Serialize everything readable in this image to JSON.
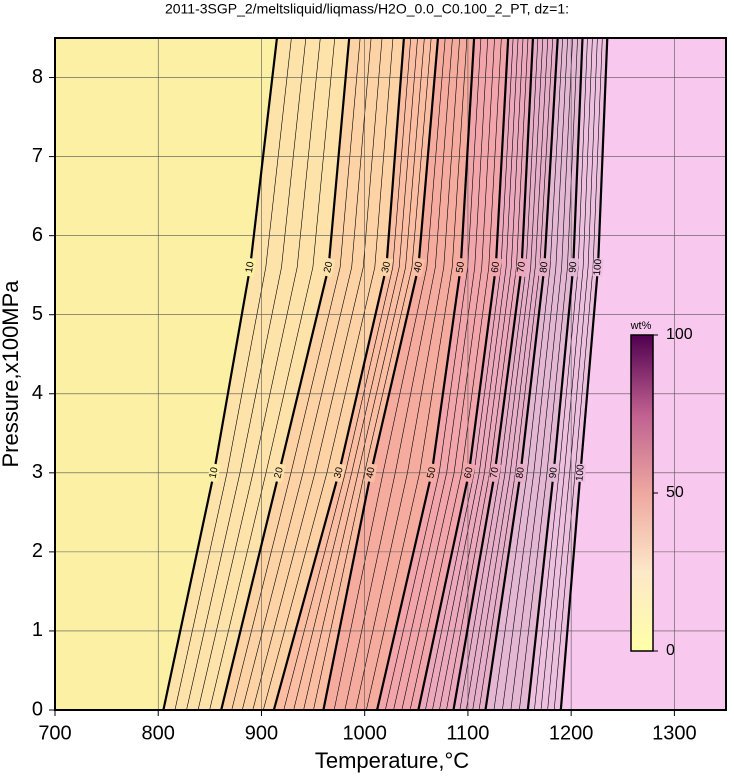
{
  "chart_data": {
    "type": "contour",
    "title": "2011-3SGP_2/meltsliquid/liqmass/H2O_0.0_C0.100_2_PT, dz=1:",
    "x_label": "Temperature,°C",
    "y_label": "Pressure,x100MPa",
    "xlim": [
      700,
      1350
    ],
    "ylim": [
      0,
      8.5
    ],
    "xticks": [
      700,
      800,
      900,
      1000,
      1100,
      1200,
      1300
    ],
    "yticks": [
      0,
      1,
      2,
      3,
      4,
      5,
      6,
      7,
      8
    ],
    "grid": true,
    "pressure": [
      0,
      3,
      5.6,
      8.5
    ],
    "label_pressures": [
      3,
      5.6
    ],
    "minor_per_band": 4,
    "contours": [
      {
        "level": 10,
        "temperature": [
          805,
          854,
          889,
          915
        ]
      },
      {
        "level": 20,
        "temperature": [
          861,
          917,
          965,
          985
        ]
      },
      {
        "level": 30,
        "temperature": [
          912,
          975,
          1021,
          1038
        ]
      },
      {
        "level": 40,
        "temperature": [
          960,
          1006,
          1052,
          1071
        ]
      },
      {
        "level": 50,
        "temperature": [
          1012,
          1065,
          1093,
          1106
        ]
      },
      {
        "level": 60,
        "temperature": [
          1052,
          1101,
          1127,
          1139
        ]
      },
      {
        "level": 70,
        "temperature": [
          1086,
          1126,
          1152,
          1163
        ]
      },
      {
        "level": 80,
        "temperature": [
          1117,
          1151,
          1174,
          1187
        ]
      },
      {
        "level": 90,
        "temperature": [
          1158,
          1183,
          1202,
          1211
        ]
      },
      {
        "level": 100,
        "temperature": [
          1190,
          1209,
          1226,
          1235
        ]
      }
    ],
    "band_colors": [
      "#fbf0a4",
      "#fde2aa",
      "#fdd2a4",
      "#fbbea2",
      "#f6ab9f",
      "#f2a6ac",
      "#eca8bc",
      "#e6aec8",
      "#e4b8d4",
      "#eec0e0",
      "#f8c8ee"
    ],
    "colorbar": {
      "label": "wt%",
      "lim": [
        0,
        100
      ],
      "ticks": [
        0,
        50,
        100
      ],
      "colors": [
        "#ffffa8",
        "#fde8c8",
        "#eea8a0",
        "#c06090",
        "#500050"
      ]
    }
  }
}
